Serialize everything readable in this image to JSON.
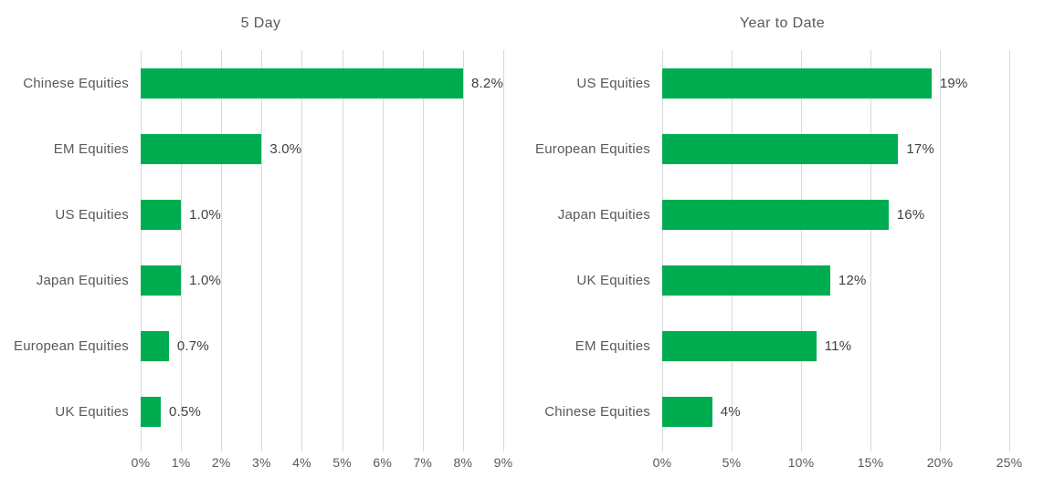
{
  "colors": {
    "bar_green": "#00AC50",
    "gridline": "#D9D9D9",
    "label_text": "#595959",
    "value_text": "#404040",
    "background": "#FFFFFF"
  },
  "chart_data": [
    {
      "type": "bar",
      "orientation": "horizontal",
      "title": "5 Day",
      "categories": [
        "Chinese Equities",
        "EM Equities",
        "US Equities",
        "Japan Equities",
        "European Equities",
        "UK Equities"
      ],
      "values": [
        8.2,
        3.0,
        1.0,
        1.0,
        0.7,
        0.5
      ],
      "value_labels": [
        "8.2%",
        "3.0%",
        "1.0%",
        "1.0%",
        "0.7%",
        "0.5%"
      ],
      "x_ticks": [
        "0%",
        "1%",
        "2%",
        "3%",
        "4%",
        "5%",
        "6%",
        "7%",
        "8%",
        "9%"
      ],
      "xlim": [
        0,
        9
      ],
      "grid": true,
      "legend": "none"
    },
    {
      "type": "bar",
      "orientation": "horizontal",
      "title": "Year to Date",
      "categories": [
        "US Equities",
        "European Equities",
        "Japan Equities",
        "UK Equities",
        "EM Equities",
        "Chinese Equities"
      ],
      "values": [
        19.4,
        17.0,
        16.3,
        12.1,
        11.1,
        3.6
      ],
      "value_labels": [
        "19%",
        "17%",
        "16%",
        "12%",
        "11%",
        "4%"
      ],
      "x_ticks": [
        "0%",
        "5%",
        "10%",
        "15%",
        "20%",
        "25%"
      ],
      "xlim": [
        0,
        25
      ],
      "grid": true,
      "legend": "none"
    }
  ]
}
